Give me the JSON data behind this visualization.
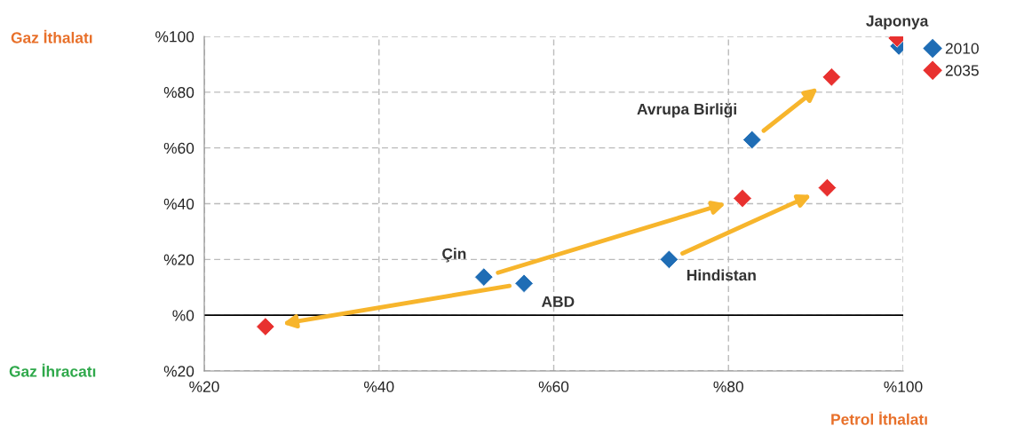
{
  "chart_data": {
    "type": "scatter",
    "xlabel": "Petrol İthalatı",
    "series": [
      {
        "name": "2010",
        "color": "#1f6db5",
        "x": [
          99.5,
          82.7,
          52.0,
          56.6,
          73.2
        ],
        "values": [
          96.5,
          62.9,
          13.7,
          11.4,
          20.0
        ]
      },
      {
        "name": "2035",
        "color": "#e8312f",
        "x": [
          99.3,
          91.8,
          81.6,
          27.0,
          91.3
        ],
        "values": [
          99.4,
          85.4,
          41.9,
          -4.1,
          45.7
        ]
      }
    ],
    "annotations": [
      {
        "text": "Japonya",
        "x": 99.3,
        "y": 99.4
      },
      {
        "text": "Avrupa Birliği",
        "x": 82.7,
        "y": 62.9
      },
      {
        "text": "Çin",
        "x": 52.0,
        "y": 13.7
      },
      {
        "text": "ABD",
        "x": 56.6,
        "y": 11.4
      },
      {
        "text": "Hindistan",
        "x": 73.2,
        "y": 20.0
      },
      "Gaz İthalatı",
      "Gaz İhracatı"
    ],
    "xlim": [
      20,
      100
    ],
    "ylim": [
      -20,
      100
    ],
    "xticks": [
      {
        "value": 20,
        "label": "%20"
      },
      {
        "value": 40,
        "label": "%40"
      },
      {
        "value": 60,
        "label": "%60"
      },
      {
        "value": 80,
        "label": "%80"
      },
      {
        "value": 100,
        "label": "%100"
      }
    ],
    "yticks": [
      {
        "value": -20,
        "label": "%20"
      },
      {
        "value": 0,
        "label": "%0"
      },
      {
        "value": 20,
        "label": "%20"
      },
      {
        "value": 40,
        "label": "%40"
      },
      {
        "value": 60,
        "label": "%60"
      },
      {
        "value": 80,
        "label": "%80"
      },
      {
        "value": 100,
        "label": "%100"
      }
    ],
    "ref_lines": [
      {
        "axis": "y",
        "value": 0,
        "color": "#000000"
      }
    ],
    "grid": true,
    "legend": "top right",
    "marker": "diamond"
  }
}
